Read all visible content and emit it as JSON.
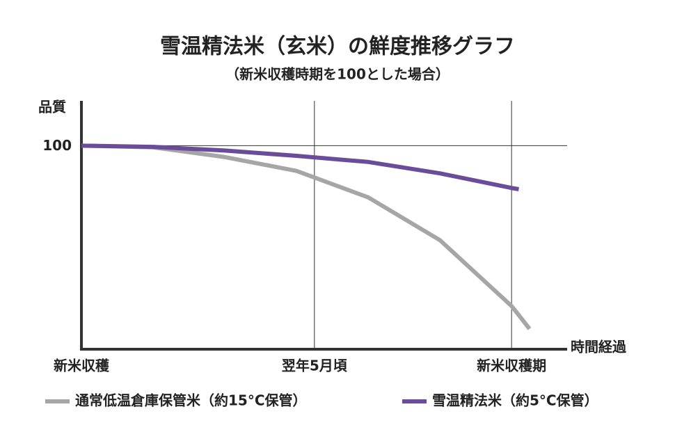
{
  "chart_data": {
    "type": "line",
    "title": "雪温精法米（玄米）の鮮度推移グラフ",
    "subtitle": "（新米収穫時期を100とした場合）",
    "y_label": "品質",
    "x_label": "時間経過",
    "x": [
      0,
      2,
      4,
      6,
      8,
      10,
      12,
      12.2,
      12.5
    ],
    "series": [
      {
        "name": "通常低温倉庫保管米（約15°C保管）",
        "color": "#a6a6a6",
        "values": [
          100,
          99.6,
          97.2,
          93.8,
          87.3,
          76.8,
          60.6,
          58.4,
          55
        ]
      },
      {
        "name": "雪温精法米（約5°C保管）",
        "color": "#6b4c9a",
        "values": [
          100,
          99.7,
          98.8,
          97.5,
          96,
          93.2,
          89.6,
          89.3,
          null
        ]
      }
    ],
    "xlim": [
      0,
      13.55
    ],
    "xticks": [
      {
        "value": 0,
        "label": "新米収穫"
      },
      {
        "value": 6.5,
        "label": "翌年5月頃"
      },
      {
        "value": 12,
        "label": "新米収穫期"
      }
    ],
    "ylim": [
      50,
      111
    ],
    "yticks": [
      100
    ],
    "grid": true,
    "legend": "bottom"
  }
}
